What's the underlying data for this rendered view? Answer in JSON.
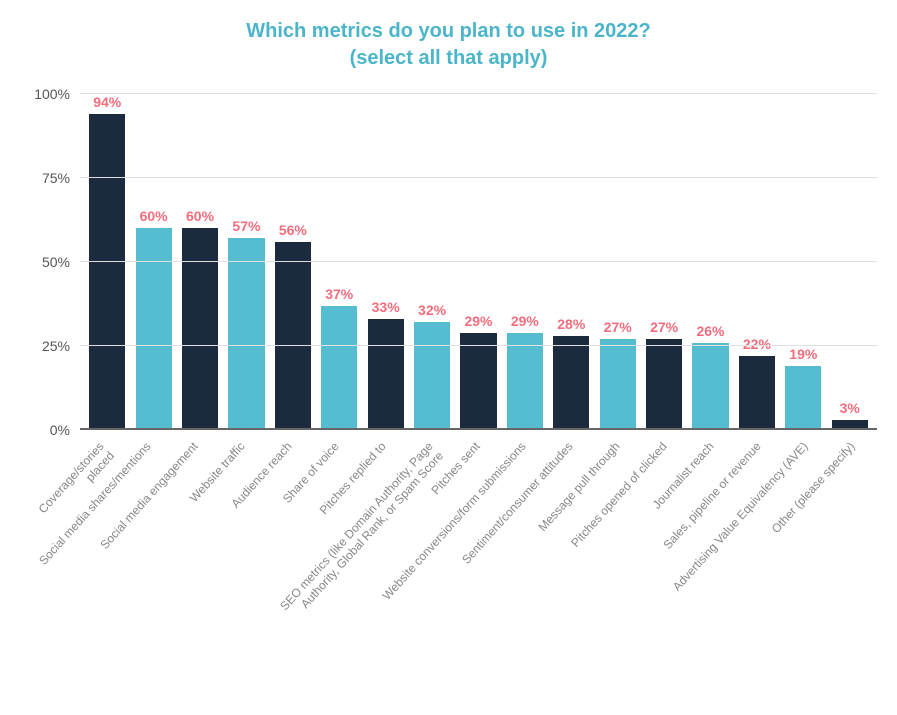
{
  "chart": {
    "type": "bar",
    "title_line1": "Which metrics do you plan to use in 2022?",
    "title_line2": "(select all that apply)",
    "title_fontsize": 20,
    "title_color": "#4bb5c9",
    "background_color": "#ffffff",
    "grid_color": "#e0e0e0",
    "axis_color": "#666666",
    "ytick_label_color": "#555555",
    "xtick_label_color": "#888888",
    "value_label_color": "#f26d7d",
    "value_label_fontsize": 14,
    "ytick_fontsize": 14,
    "xtick_fontsize": 12,
    "xtick_rotation_deg": -48,
    "bar_width_ratio": 0.78,
    "ylim_min": 0,
    "ylim_max": 100,
    "ytick_step": 25,
    "yticks": [
      {
        "value": 0,
        "label": "0%"
      },
      {
        "value": 25,
        "label": "25%"
      },
      {
        "value": 50,
        "label": "50%"
      },
      {
        "value": 75,
        "label": "75%"
      },
      {
        "value": 100,
        "label": "100%"
      }
    ],
    "color_dark": "#1b2a3d",
    "color_teal": "#56bcd0",
    "categories": [
      {
        "label": "Coverage/stories\nplaced",
        "value": 94,
        "display": "94%",
        "color": "#1b2a3d"
      },
      {
        "label": "Social media shares/mentions",
        "value": 60,
        "display": "60%",
        "color": "#56bcd0"
      },
      {
        "label": "Social media engagement",
        "value": 60,
        "display": "60%",
        "color": "#1b2a3d"
      },
      {
        "label": "Website traffic",
        "value": 57,
        "display": "57%",
        "color": "#56bcd0"
      },
      {
        "label": "Audience reach",
        "value": 56,
        "display": "56%",
        "color": "#1b2a3d"
      },
      {
        "label": "Share of voice",
        "value": 37,
        "display": "37%",
        "color": "#56bcd0"
      },
      {
        "label": "Pitches replied to",
        "value": 33,
        "display": "33%",
        "color": "#1b2a3d"
      },
      {
        "label": "SEO metrics (like Domain Authority, Page\nAuthority, Global Rank, or Spam Score",
        "value": 32,
        "display": "32%",
        "color": "#56bcd0"
      },
      {
        "label": "Pitches sent",
        "value": 29,
        "display": "29%",
        "color": "#1b2a3d"
      },
      {
        "label": "Website conversions/form submissions",
        "value": 29,
        "display": "29%",
        "color": "#56bcd0"
      },
      {
        "label": "Sentiment/consumer attitudes",
        "value": 28,
        "display": "28%",
        "color": "#1b2a3d"
      },
      {
        "label": "Message pull through",
        "value": 27,
        "display": "27%",
        "color": "#56bcd0"
      },
      {
        "label": "Pitches opened of clicked",
        "value": 27,
        "display": "27%",
        "color": "#1b2a3d"
      },
      {
        "label": "Journalist reach",
        "value": 26,
        "display": "26%",
        "color": "#56bcd0"
      },
      {
        "label": "Sales, pipeline or revenue",
        "value": 22,
        "display": "22%",
        "color": "#1b2a3d"
      },
      {
        "label": "Advertising Value Equivalency (AVE)",
        "value": 19,
        "display": "19%",
        "color": "#56bcd0"
      },
      {
        "label": "Other (please specify)",
        "value": 3,
        "display": "3%",
        "color": "#1b2a3d"
      }
    ]
  }
}
